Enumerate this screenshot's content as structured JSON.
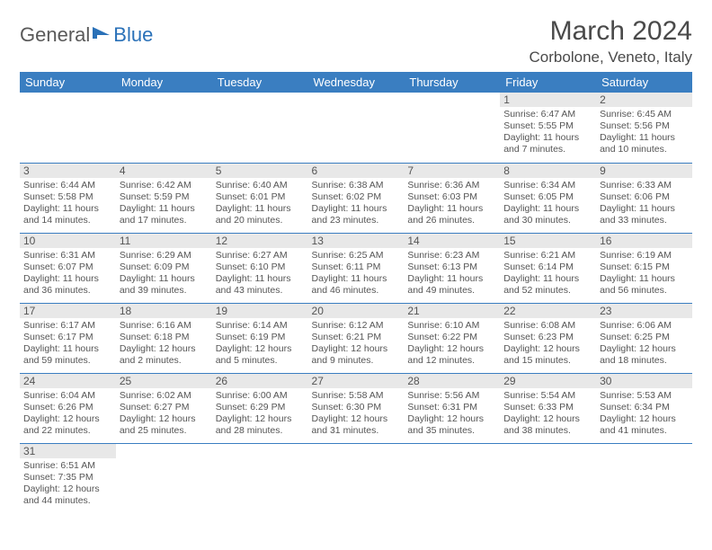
{
  "logo": {
    "general": "General",
    "blue": "Blue"
  },
  "header": {
    "month_title": "March 2024",
    "location": "Corbolone, Veneto, Italy"
  },
  "colors": {
    "header_bg": "#3a7ec1",
    "header_text": "#ffffff",
    "daynum_bg": "#e8e8e8",
    "row_divider": "#3a7ec1",
    "text": "#4a4a4a",
    "logo_gray": "#595959",
    "logo_blue": "#2a71b8"
  },
  "days_of_week": [
    "Sunday",
    "Monday",
    "Tuesday",
    "Wednesday",
    "Thursday",
    "Friday",
    "Saturday"
  ],
  "weeks": [
    [
      {
        "n": "",
        "sunrise": "",
        "sunset": "",
        "daylight": ""
      },
      {
        "n": "",
        "sunrise": "",
        "sunset": "",
        "daylight": ""
      },
      {
        "n": "",
        "sunrise": "",
        "sunset": "",
        "daylight": ""
      },
      {
        "n": "",
        "sunrise": "",
        "sunset": "",
        "daylight": ""
      },
      {
        "n": "",
        "sunrise": "",
        "sunset": "",
        "daylight": ""
      },
      {
        "n": "1",
        "sunrise": "Sunrise: 6:47 AM",
        "sunset": "Sunset: 5:55 PM",
        "daylight": "Daylight: 11 hours and 7 minutes."
      },
      {
        "n": "2",
        "sunrise": "Sunrise: 6:45 AM",
        "sunset": "Sunset: 5:56 PM",
        "daylight": "Daylight: 11 hours and 10 minutes."
      }
    ],
    [
      {
        "n": "3",
        "sunrise": "Sunrise: 6:44 AM",
        "sunset": "Sunset: 5:58 PM",
        "daylight": "Daylight: 11 hours and 14 minutes."
      },
      {
        "n": "4",
        "sunrise": "Sunrise: 6:42 AM",
        "sunset": "Sunset: 5:59 PM",
        "daylight": "Daylight: 11 hours and 17 minutes."
      },
      {
        "n": "5",
        "sunrise": "Sunrise: 6:40 AM",
        "sunset": "Sunset: 6:01 PM",
        "daylight": "Daylight: 11 hours and 20 minutes."
      },
      {
        "n": "6",
        "sunrise": "Sunrise: 6:38 AM",
        "sunset": "Sunset: 6:02 PM",
        "daylight": "Daylight: 11 hours and 23 minutes."
      },
      {
        "n": "7",
        "sunrise": "Sunrise: 6:36 AM",
        "sunset": "Sunset: 6:03 PM",
        "daylight": "Daylight: 11 hours and 26 minutes."
      },
      {
        "n": "8",
        "sunrise": "Sunrise: 6:34 AM",
        "sunset": "Sunset: 6:05 PM",
        "daylight": "Daylight: 11 hours and 30 minutes."
      },
      {
        "n": "9",
        "sunrise": "Sunrise: 6:33 AM",
        "sunset": "Sunset: 6:06 PM",
        "daylight": "Daylight: 11 hours and 33 minutes."
      }
    ],
    [
      {
        "n": "10",
        "sunrise": "Sunrise: 6:31 AM",
        "sunset": "Sunset: 6:07 PM",
        "daylight": "Daylight: 11 hours and 36 minutes."
      },
      {
        "n": "11",
        "sunrise": "Sunrise: 6:29 AM",
        "sunset": "Sunset: 6:09 PM",
        "daylight": "Daylight: 11 hours and 39 minutes."
      },
      {
        "n": "12",
        "sunrise": "Sunrise: 6:27 AM",
        "sunset": "Sunset: 6:10 PM",
        "daylight": "Daylight: 11 hours and 43 minutes."
      },
      {
        "n": "13",
        "sunrise": "Sunrise: 6:25 AM",
        "sunset": "Sunset: 6:11 PM",
        "daylight": "Daylight: 11 hours and 46 minutes."
      },
      {
        "n": "14",
        "sunrise": "Sunrise: 6:23 AM",
        "sunset": "Sunset: 6:13 PM",
        "daylight": "Daylight: 11 hours and 49 minutes."
      },
      {
        "n": "15",
        "sunrise": "Sunrise: 6:21 AM",
        "sunset": "Sunset: 6:14 PM",
        "daylight": "Daylight: 11 hours and 52 minutes."
      },
      {
        "n": "16",
        "sunrise": "Sunrise: 6:19 AM",
        "sunset": "Sunset: 6:15 PM",
        "daylight": "Daylight: 11 hours and 56 minutes."
      }
    ],
    [
      {
        "n": "17",
        "sunrise": "Sunrise: 6:17 AM",
        "sunset": "Sunset: 6:17 PM",
        "daylight": "Daylight: 11 hours and 59 minutes."
      },
      {
        "n": "18",
        "sunrise": "Sunrise: 6:16 AM",
        "sunset": "Sunset: 6:18 PM",
        "daylight": "Daylight: 12 hours and 2 minutes."
      },
      {
        "n": "19",
        "sunrise": "Sunrise: 6:14 AM",
        "sunset": "Sunset: 6:19 PM",
        "daylight": "Daylight: 12 hours and 5 minutes."
      },
      {
        "n": "20",
        "sunrise": "Sunrise: 6:12 AM",
        "sunset": "Sunset: 6:21 PM",
        "daylight": "Daylight: 12 hours and 9 minutes."
      },
      {
        "n": "21",
        "sunrise": "Sunrise: 6:10 AM",
        "sunset": "Sunset: 6:22 PM",
        "daylight": "Daylight: 12 hours and 12 minutes."
      },
      {
        "n": "22",
        "sunrise": "Sunrise: 6:08 AM",
        "sunset": "Sunset: 6:23 PM",
        "daylight": "Daylight: 12 hours and 15 minutes."
      },
      {
        "n": "23",
        "sunrise": "Sunrise: 6:06 AM",
        "sunset": "Sunset: 6:25 PM",
        "daylight": "Daylight: 12 hours and 18 minutes."
      }
    ],
    [
      {
        "n": "24",
        "sunrise": "Sunrise: 6:04 AM",
        "sunset": "Sunset: 6:26 PM",
        "daylight": "Daylight: 12 hours and 22 minutes."
      },
      {
        "n": "25",
        "sunrise": "Sunrise: 6:02 AM",
        "sunset": "Sunset: 6:27 PM",
        "daylight": "Daylight: 12 hours and 25 minutes."
      },
      {
        "n": "26",
        "sunrise": "Sunrise: 6:00 AM",
        "sunset": "Sunset: 6:29 PM",
        "daylight": "Daylight: 12 hours and 28 minutes."
      },
      {
        "n": "27",
        "sunrise": "Sunrise: 5:58 AM",
        "sunset": "Sunset: 6:30 PM",
        "daylight": "Daylight: 12 hours and 31 minutes."
      },
      {
        "n": "28",
        "sunrise": "Sunrise: 5:56 AM",
        "sunset": "Sunset: 6:31 PM",
        "daylight": "Daylight: 12 hours and 35 minutes."
      },
      {
        "n": "29",
        "sunrise": "Sunrise: 5:54 AM",
        "sunset": "Sunset: 6:33 PM",
        "daylight": "Daylight: 12 hours and 38 minutes."
      },
      {
        "n": "30",
        "sunrise": "Sunrise: 5:53 AM",
        "sunset": "Sunset: 6:34 PM",
        "daylight": "Daylight: 12 hours and 41 minutes."
      }
    ],
    [
      {
        "n": "31",
        "sunrise": "Sunrise: 6:51 AM",
        "sunset": "Sunset: 7:35 PM",
        "daylight": "Daylight: 12 hours and 44 minutes."
      },
      {
        "n": "",
        "sunrise": "",
        "sunset": "",
        "daylight": ""
      },
      {
        "n": "",
        "sunrise": "",
        "sunset": "",
        "daylight": ""
      },
      {
        "n": "",
        "sunrise": "",
        "sunset": "",
        "daylight": ""
      },
      {
        "n": "",
        "sunrise": "",
        "sunset": "",
        "daylight": ""
      },
      {
        "n": "",
        "sunrise": "",
        "sunset": "",
        "daylight": ""
      },
      {
        "n": "",
        "sunrise": "",
        "sunset": "",
        "daylight": ""
      }
    ]
  ]
}
